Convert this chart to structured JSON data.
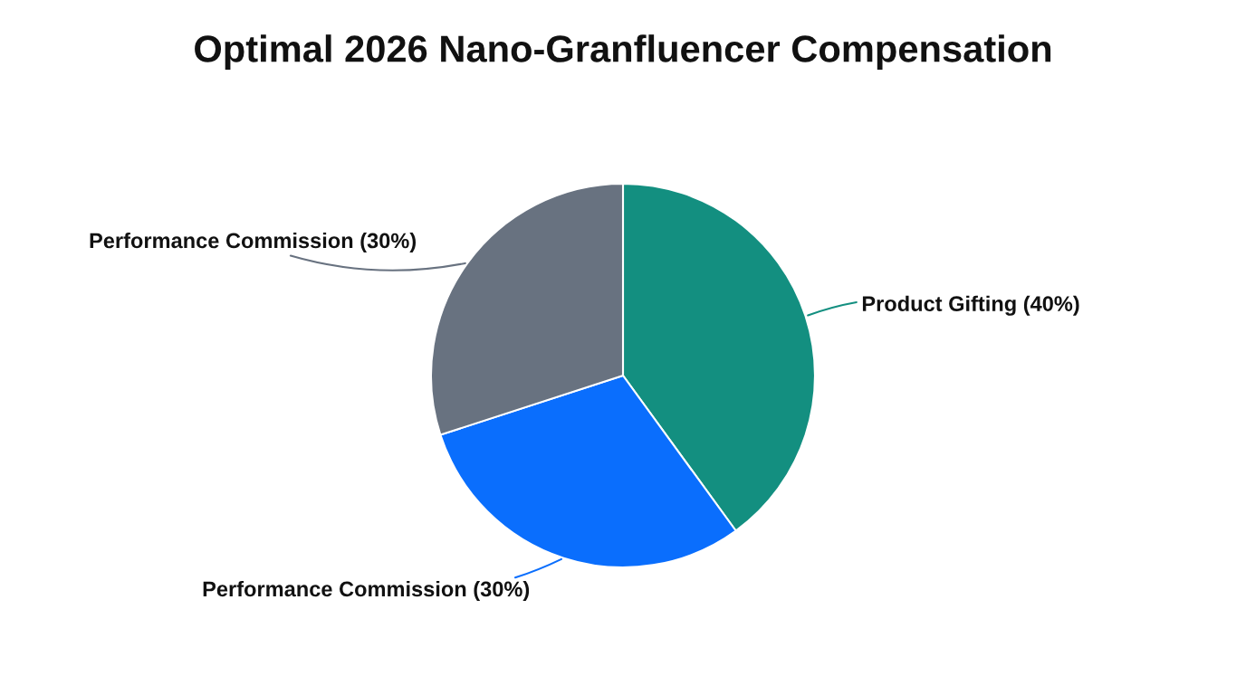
{
  "chart_data": {
    "type": "pie",
    "title": "Optimal 2026 Nano-Granfluencer Compensation",
    "categories": [
      "Product Gifting (40%)",
      "Performance Commission (30%)",
      "Performance Commission (30%)"
    ],
    "values": [
      40,
      30,
      30
    ],
    "colors": [
      "#138f80",
      "#0a6efd",
      "#687280"
    ]
  }
}
